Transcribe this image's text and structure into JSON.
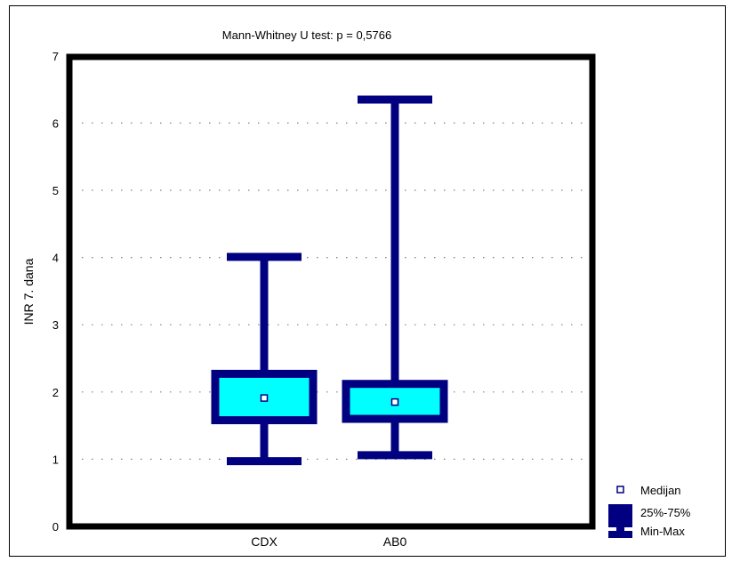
{
  "chart_data": {
    "type": "boxplot",
    "title": "Mann-Whitney U test: p = 0,5766",
    "ylabel": "INR 7. dana",
    "xlabel": "",
    "ylim": [
      0,
      7
    ],
    "yticks": [
      "0",
      "1",
      "2",
      "3",
      "4",
      "5",
      "6",
      "7"
    ],
    "grid": true,
    "categories": [
      "CDX",
      "AB0"
    ],
    "boxes": [
      {
        "category": "CDX",
        "min": 0.97,
        "q1": 1.58,
        "median": 1.91,
        "q3": 2.27,
        "max": 4.01
      },
      {
        "category": "AB0",
        "min": 1.06,
        "q1": 1.6,
        "median": 1.85,
        "q3": 2.12,
        "max": 6.35
      }
    ],
    "legend": {
      "placement": "bottom-right",
      "items": [
        {
          "key": "median",
          "label": "Medijan"
        },
        {
          "key": "box",
          "label": "25%-75%"
        },
        {
          "key": "range",
          "label": "Min-Max"
        }
      ]
    },
    "colors": {
      "frame": "#000000",
      "whisker": "#000080",
      "box_fill": "#00FFFF",
      "box_stroke": "#000080",
      "median": "#FFFFFF",
      "grid": "#808080"
    }
  }
}
